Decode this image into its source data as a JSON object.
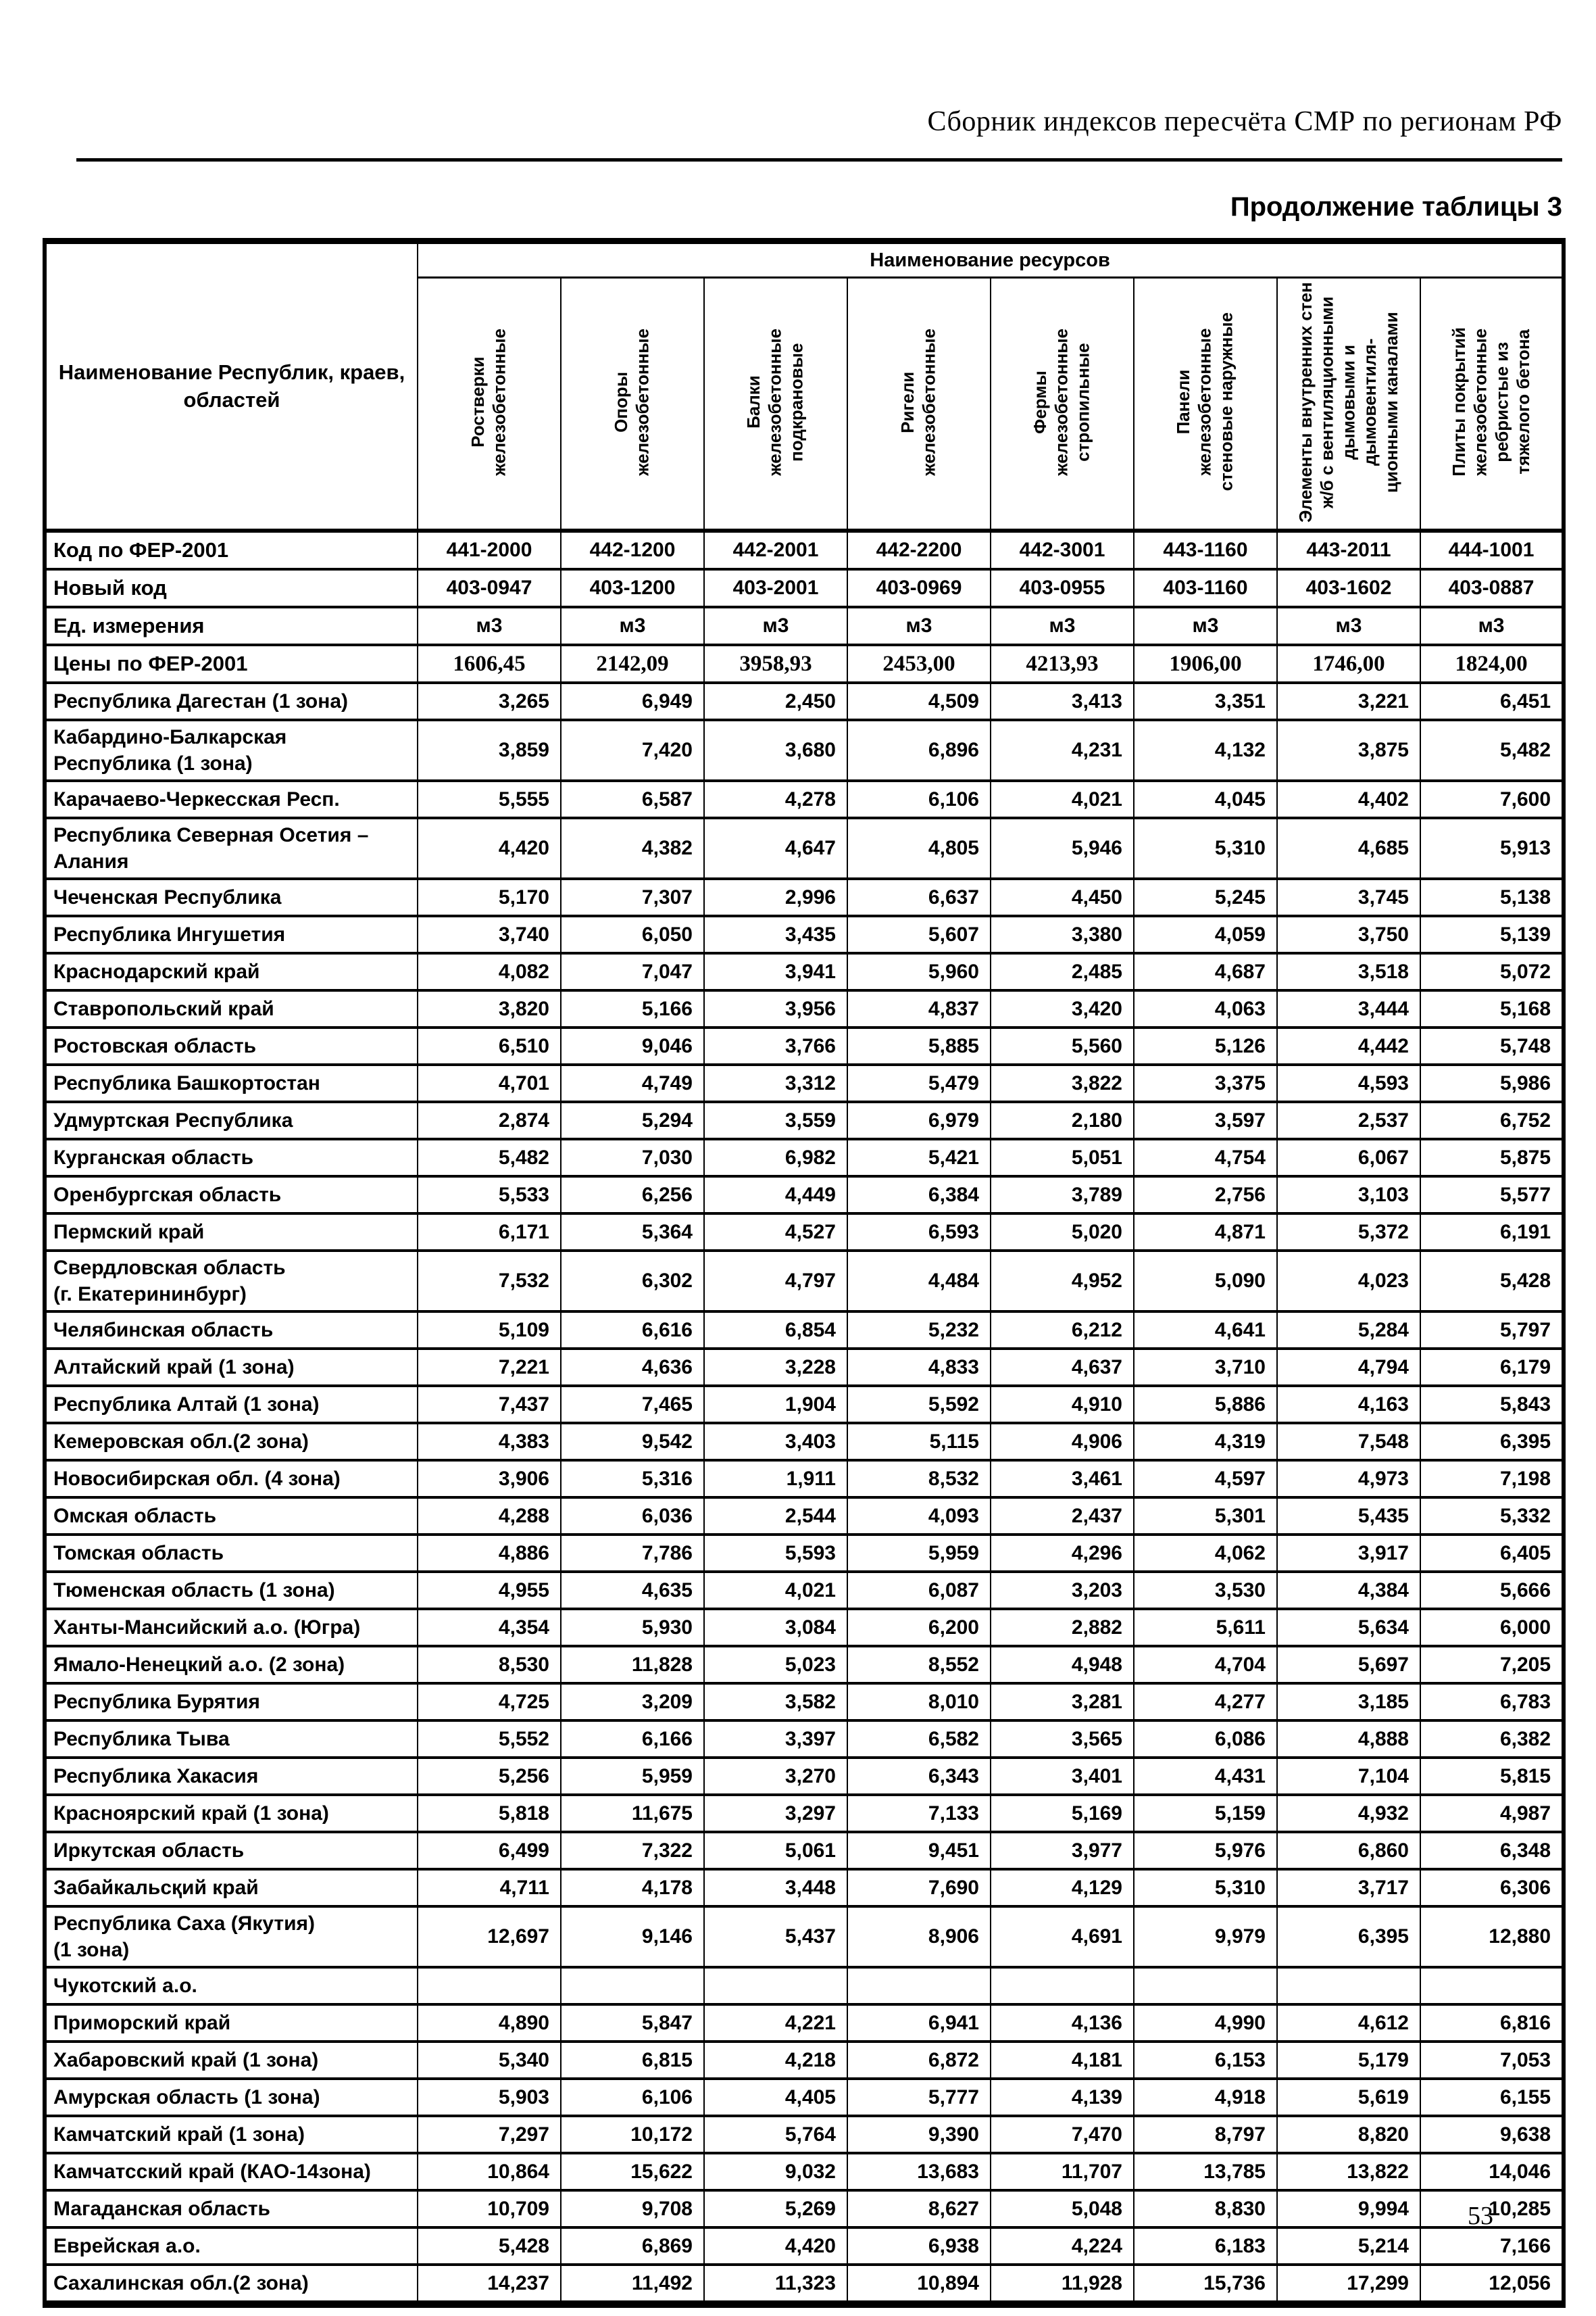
{
  "page": {
    "header_title": "Сборник индексов пересчёта СМР по регионам РФ",
    "table_caption": "Продолжение таблицы 3",
    "page_number": "53"
  },
  "table": {
    "name_column_header": "Наименование Республик, краев,\nобластей",
    "resources_header": "Наименование ресурсов",
    "columns": [
      "Ростверки\nжелезобетонные",
      "Опоры\nжелезобетонные",
      "Балки\nжелезобетонные\nподкрановые",
      "Ригели\nжелезобетонные",
      "Фермы\nжелезобетонные\nстропильные",
      "Панели\nжелезобетонные\nстеновые наружные",
      "Элементы внутренних стен\nж/б с вентиляционными\nдымовыми и дымовентиля-\nционными каналами",
      "Плиты покрытий\nжелезобетонные\nребристые из\nтяжелого бетона"
    ],
    "meta_rows": [
      {
        "label": "Код по ФЕР-2001",
        "values": [
          "441-2000",
          "442-1200",
          "442-2001",
          "442-2200",
          "442-3001",
          "443-1160",
          "443-2011",
          "444-1001"
        ]
      },
      {
        "label": "Новый код",
        "values": [
          "403-0947",
          "403-1200",
          "403-2001",
          "403-0969",
          "403-0955",
          "403-1160",
          "403-1602",
          "403-0887"
        ]
      },
      {
        "label": "Ед. измерения",
        "values": [
          "м3",
          "м3",
          "м3",
          "м3",
          "м3",
          "м3",
          "м3",
          "м3"
        ]
      },
      {
        "label": "Цены по ФЕР-2001",
        "values": [
          "1606,45",
          "2142,09",
          "3958,93",
          "2453,00",
          "4213,93",
          "1906,00",
          "1746,00",
          "1824,00"
        ]
      }
    ],
    "rows": [
      {
        "name": "Республика Дагестан (1 зона)",
        "values": [
          "3,265",
          "6,949",
          "2,450",
          "4,509",
          "3,413",
          "3,351",
          "3,221",
          "6,451"
        ]
      },
      {
        "name": "Кабардино-Балкарская\nРеспублика (1 зона)",
        "values": [
          "3,859",
          "7,420",
          "3,680",
          "6,896",
          "4,231",
          "4,132",
          "3,875",
          "5,482"
        ]
      },
      {
        "name": "Карачаево-Черкесская Респ.",
        "values": [
          "5,555",
          "6,587",
          "4,278",
          "6,106",
          "4,021",
          "4,045",
          "4,402",
          "7,600"
        ]
      },
      {
        "name": "Республика Северная Осетия –\nАлания",
        "values": [
          "4,420",
          "4,382",
          "4,647",
          "4,805",
          "5,946",
          "5,310",
          "4,685",
          "5,913"
        ]
      },
      {
        "name": "Чеченская Республика",
        "values": [
          "5,170",
          "7,307",
          "2,996",
          "6,637",
          "4,450",
          "5,245",
          "3,745",
          "5,138"
        ]
      },
      {
        "name": "Республика Ингушетия",
        "values": [
          "3,740",
          "6,050",
          "3,435",
          "5,607",
          "3,380",
          "4,059",
          "3,750",
          "5,139"
        ]
      },
      {
        "name": "Краснодарский край",
        "values": [
          "4,082",
          "7,047",
          "3,941",
          "5,960",
          "2,485",
          "4,687",
          "3,518",
          "5,072"
        ]
      },
      {
        "name": "Ставропольский край",
        "values": [
          "3,820",
          "5,166",
          "3,956",
          "4,837",
          "3,420",
          "4,063",
          "3,444",
          "5,168"
        ]
      },
      {
        "name": "Ростовская область",
        "values": [
          "6,510",
          "9,046",
          "3,766",
          "5,885",
          "5,560",
          "5,126",
          "4,442",
          "5,748"
        ]
      },
      {
        "name": "Республика Башкортостан",
        "values": [
          "4,701",
          "4,749",
          "3,312",
          "5,479",
          "3,822",
          "3,375",
          "4,593",
          "5,986"
        ]
      },
      {
        "name": "Удмуртская Республика",
        "values": [
          "2,874",
          "5,294",
          "3,559",
          "6,979",
          "2,180",
          "3,597",
          "2,537",
          "6,752"
        ]
      },
      {
        "name": "Курганская область",
        "values": [
          "5,482",
          "7,030",
          "6,982",
          "5,421",
          "5,051",
          "4,754",
          "6,067",
          "5,875"
        ]
      },
      {
        "name": "Оренбургская область",
        "values": [
          "5,533",
          "6,256",
          "4,449",
          "6,384",
          "3,789",
          "2,756",
          "3,103",
          "5,577"
        ]
      },
      {
        "name": "Пермский край",
        "values": [
          "6,171",
          "5,364",
          "4,527",
          "6,593",
          "5,020",
          "4,871",
          "5,372",
          "6,191"
        ]
      },
      {
        "name": "Свердловская область\n(г. Екатерининбург)",
        "values": [
          "7,532",
          "6,302",
          "4,797",
          "4,484",
          "4,952",
          "5,090",
          "4,023",
          "5,428"
        ]
      },
      {
        "name": "Челябинская область",
        "values": [
          "5,109",
          "6,616",
          "6,854",
          "5,232",
          "6,212",
          "4,641",
          "5,284",
          "5,797"
        ]
      },
      {
        "name": "Алтайский край (1 зона)",
        "values": [
          "7,221",
          "4,636",
          "3,228",
          "4,833",
          "4,637",
          "3,710",
          "4,794",
          "6,179"
        ]
      },
      {
        "name": "Республика Алтай (1 зона)",
        "values": [
          "7,437",
          "7,465",
          "1,904",
          "5,592",
          "4,910",
          "5,886",
          "4,163",
          "5,843"
        ]
      },
      {
        "name": "Кемеровская обл.(2 зона)",
        "values": [
          "4,383",
          "9,542",
          "3,403",
          "5,115",
          "4,906",
          "4,319",
          "7,548",
          "6,395"
        ]
      },
      {
        "name": "Новосибирская обл. (4 зона)",
        "values": [
          "3,906",
          "5,316",
          "1,911",
          "8,532",
          "3,461",
          "4,597",
          "4,973",
          "7,198"
        ]
      },
      {
        "name": "Омская область",
        "values": [
          "4,288",
          "6,036",
          "2,544",
          "4,093",
          "2,437",
          "5,301",
          "5,435",
          "5,332"
        ]
      },
      {
        "name": "Томская область",
        "values": [
          "4,886",
          "7,786",
          "5,593",
          "5,959",
          "4,296",
          "4,062",
          "3,917",
          "6,405"
        ]
      },
      {
        "name": "Тюменская область (1 зона)",
        "values": [
          "4,955",
          "4,635",
          "4,021",
          "6,087",
          "3,203",
          "3,530",
          "4,384",
          "5,666"
        ]
      },
      {
        "name": "Ханты-Мансийский а.о. (Югра)",
        "values": [
          "4,354",
          "5,930",
          "3,084",
          "6,200",
          "2,882",
          "5,611",
          "5,634",
          "6,000"
        ]
      },
      {
        "name": "Ямало-Ненецкий а.о. (2 зона)",
        "values": [
          "8,530",
          "11,828",
          "5,023",
          "8,552",
          "4,948",
          "4,704",
          "5,697",
          "7,205"
        ]
      },
      {
        "name": "Республика Бурятия",
        "values": [
          "4,725",
          "3,209",
          "3,582",
          "8,010",
          "3,281",
          "4,277",
          "3,185",
          "6,783"
        ]
      },
      {
        "name": "Республика Тыва",
        "values": [
          "5,552",
          "6,166",
          "3,397",
          "6,582",
          "3,565",
          "6,086",
          "4,888",
          "6,382"
        ]
      },
      {
        "name": "Республика Хакасия",
        "values": [
          "5,256",
          "5,959",
          "3,270",
          "6,343",
          "3,401",
          "4,431",
          "7,104",
          "5,815"
        ]
      },
      {
        "name": "Красноярский край (1 зона)",
        "values": [
          "5,818",
          "11,675",
          "3,297",
          "7,133",
          "5,169",
          "5,159",
          "4,932",
          "4,987"
        ]
      },
      {
        "name": "Иркутская область",
        "values": [
          "6,499",
          "7,322",
          "5,061",
          "9,451",
          "3,977",
          "5,976",
          "6,860",
          "6,348"
        ]
      },
      {
        "name": "Забайкальсқий край",
        "values": [
          "4,711",
          "4,178",
          "3,448",
          "7,690",
          "4,129",
          "5,310",
          "3,717",
          "6,306"
        ]
      },
      {
        "name": "Республика Саха (Якутия)\n(1 зона)",
        "values": [
          "12,697",
          "9,146",
          "5,437",
          "8,906",
          "4,691",
          "9,979",
          "6,395",
          "12,880"
        ]
      },
      {
        "name": "Чукотский а.о.",
        "values": [
          "",
          "",
          "",
          "",
          "",
          "",
          "",
          ""
        ]
      },
      {
        "name": "Приморский край",
        "values": [
          "4,890",
          "5,847",
          "4,221",
          "6,941",
          "4,136",
          "4,990",
          "4,612",
          "6,816"
        ]
      },
      {
        "name": "Хабаровский край (1 зона)",
        "values": [
          "5,340",
          "6,815",
          "4,218",
          "6,872",
          "4,181",
          "6,153",
          "5,179",
          "7,053"
        ]
      },
      {
        "name": "Амурская область (1 зона)",
        "values": [
          "5,903",
          "6,106",
          "4,405",
          "5,777",
          "4,139",
          "4,918",
          "5,619",
          "6,155"
        ]
      },
      {
        "name": "Камчатский край (1 зона)",
        "values": [
          "7,297",
          "10,172",
          "5,764",
          "9,390",
          "7,470",
          "8,797",
          "8,820",
          "9,638"
        ]
      },
      {
        "name": "Камчатсский край (КАО-14зона)",
        "values": [
          "10,864",
          "15,622",
          "9,032",
          "13,683",
          "11,707",
          "13,785",
          "13,822",
          "14,046"
        ]
      },
      {
        "name": "Магаданская область",
        "values": [
          "10,709",
          "9,708",
          "5,269",
          "8,627",
          "5,048",
          "8,830",
          "9,994",
          "10,285"
        ]
      },
      {
        "name": "Еврейская а.о.",
        "values": [
          "5,428",
          "6,869",
          "4,420",
          "6,938",
          "4,224",
          "6,183",
          "5,214",
          "7,166"
        ]
      },
      {
        "name": "Сахалинская обл.(2 зона)",
        "values": [
          "14,237",
          "11,492",
          "11,323",
          "10,894",
          "11,928",
          "15,736",
          "17,299",
          "12,056"
        ]
      }
    ]
  }
}
